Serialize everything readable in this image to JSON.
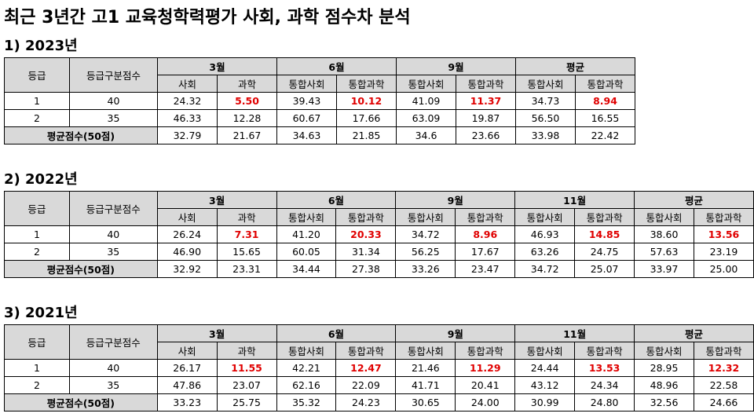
{
  "title": "최근 3년간 고1 교육청학력평가 사회, 과학 점수차 분석",
  "sections": [
    {
      "heading": "1) 2023년",
      "table": {
        "corner": [
          "등급",
          "등급구분점수"
        ],
        "groups": [
          {
            "label": "3월",
            "columns": [
              "사회",
              "과학"
            ]
          },
          {
            "label": "6월",
            "columns": [
              "통합사회",
              "통합과학"
            ]
          },
          {
            "label": "9월",
            "columns": [
              "통합사회",
              "통합과학"
            ]
          },
          {
            "label": "평균",
            "columns": [
              "통합사회",
              "통합과학"
            ]
          }
        ],
        "rows": [
          [
            "1",
            "40",
            "24.32",
            "5.50",
            "39.43",
            "10.12",
            "41.09",
            "11.37",
            "34.73",
            "8.94"
          ],
          [
            "2",
            "35",
            "46.33",
            "12.28",
            "60.67",
            "17.66",
            "63.09",
            "19.87",
            "56.50",
            "16.55"
          ]
        ],
        "footer": {
          "label": "평균점수(50점)",
          "values": [
            "32.79",
            "21.67",
            "34.63",
            "21.85",
            "34.6",
            "23.66",
            "33.98",
            "22.42"
          ]
        }
      }
    },
    {
      "heading": "2) 2022년",
      "table": {
        "corner": [
          "등급",
          "등급구분점수"
        ],
        "groups": [
          {
            "label": "3월",
            "columns": [
              "사회",
              "과학"
            ]
          },
          {
            "label": "6월",
            "columns": [
              "통합사회",
              "통합과학"
            ]
          },
          {
            "label": "9월",
            "columns": [
              "통합사회",
              "통합과학"
            ]
          },
          {
            "label": "11월",
            "columns": [
              "통합사회",
              "통합과학"
            ]
          },
          {
            "label": "평균",
            "columns": [
              "통합사회",
              "통합과학"
            ]
          }
        ],
        "rows": [
          [
            "1",
            "40",
            "26.24",
            "7.31",
            "41.20",
            "20.33",
            "34.72",
            "8.96",
            "46.93",
            "14.85",
            "38.60",
            "13.56"
          ],
          [
            "2",
            "35",
            "46.90",
            "15.65",
            "60.05",
            "31.34",
            "56.25",
            "17.67",
            "63.26",
            "24.75",
            "57.63",
            "23.19"
          ]
        ],
        "footer": {
          "label": "평균점수(50점)",
          "values": [
            "32.92",
            "23.31",
            "34.44",
            "27.38",
            "33.26",
            "23.47",
            "34.72",
            "25.07",
            "33.97",
            "25.00"
          ]
        }
      }
    },
    {
      "heading": "3) 2021년",
      "table": {
        "corner": [
          "등급",
          "등급구분점수"
        ],
        "groups": [
          {
            "label": "3월",
            "columns": [
              "사회",
              "과학"
            ]
          },
          {
            "label": "6월",
            "columns": [
              "통합사회",
              "통합과학"
            ]
          },
          {
            "label": "9월",
            "columns": [
              "통합사회",
              "통합과학"
            ]
          },
          {
            "label": "11월",
            "columns": [
              "통합사회",
              "통합과학"
            ]
          },
          {
            "label": "평균",
            "columns": [
              "통합사회",
              "통합과학"
            ]
          }
        ],
        "rows": [
          [
            "1",
            "40",
            "26.17",
            "11.55",
            "42.21",
            "12.47",
            "21.46",
            "11.29",
            "24.44",
            "13.53",
            "28.95",
            "12.32"
          ],
          [
            "2",
            "35",
            "47.86",
            "23.07",
            "62.16",
            "22.09",
            "41.71",
            "20.41",
            "43.12",
            "24.34",
            "48.96",
            "22.58"
          ]
        ],
        "footer": {
          "label": "평균점수(50점)",
          "values": [
            "33.23",
            "25.75",
            "35.32",
            "24.23",
            "30.65",
            "24.00",
            "30.99",
            "24.80",
            "32.56",
            "24.66"
          ]
        }
      }
    }
  ]
}
